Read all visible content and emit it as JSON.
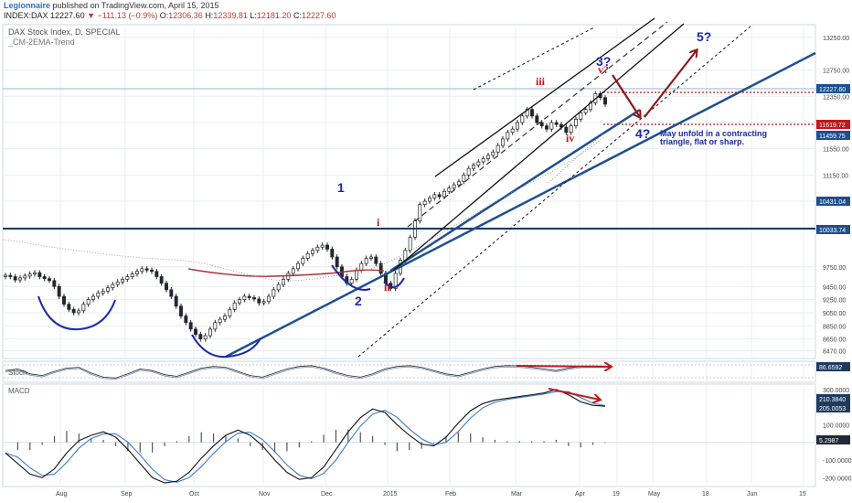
{
  "header": {
    "user": "Legionnaire",
    "published": "published on TradingView.com, April 15, 2015",
    "symbol": "INDEX:DAX",
    "last": "12227.60",
    "change": "▼ −111.13 (−0.9%)",
    "open_label": "O:",
    "open": "12306.36",
    "high_label": "H:",
    "high": "12339.81",
    "low_label": "L:",
    "low": "12181.20",
    "close_label": "C:",
    "close": "12227.60"
  },
  "pane_title": "DAX Stock Index, D, SPECIAL",
  "pane_indicator": "_CM-2EMA-Trend",
  "colors": {
    "wave_blue": "#1a2aa8",
    "wave_red": "#c0171b",
    "trend_blue": "#1e4f8f",
    "arrow": "#8b1a1a",
    "ema_red": "#b0323a",
    "ema_blue": "#1e4f8f",
    "grid": "#e8eef4"
  },
  "annotations": {
    "w1": "1",
    "w2": "2",
    "w3": "3?",
    "w4": "4?",
    "w5": "5?",
    "wi": "i",
    "wii": "ii",
    "wiii": "iii",
    "wiv": "iv",
    "wv": "v?",
    "note1": "May unfold in a contracting",
    "note2": "triangle, flat or sharp."
  },
  "stoch_label": "Stoch",
  "macd_label": "MACD",
  "chart_data": [
    {
      "type": "candlestick",
      "title": "DAX Stock Index, D, SPECIAL",
      "y_ticks": [
        "13250.00",
        "12750.00",
        "12350.00",
        "11950.00",
        "11550.00",
        "11150.00",
        "10750.00",
        "10350.00",
        "9750.00",
        "9450.00",
        "9250.00",
        "9050.00",
        "8850.00",
        "8650.00",
        "8470.00"
      ],
      "ylim": [
        8380,
        13400
      ],
      "price_tags": [
        {
          "value": "12227.60",
          "color": "#1e4f8f"
        },
        {
          "value": "11619.72",
          "color": "#c0171b"
        },
        {
          "value": "11459.75",
          "color": "#1e4f8f"
        },
        {
          "value": "10431.04",
          "color": "#1e4f8f"
        },
        {
          "value": "10033.74",
          "color": "#1e4f8f"
        }
      ],
      "x_labels": [
        "Aug",
        "Sep",
        "Oct",
        "Nov",
        "Dec",
        "2015",
        "Feb",
        "Mar",
        "Apr",
        "19",
        "May",
        "18",
        "Jun",
        "15"
      ],
      "close_series": [
        9620,
        9600,
        9550,
        9580,
        9610,
        9640,
        9660,
        9600,
        9570,
        9540,
        9450,
        9300,
        9180,
        9100,
        9050,
        9080,
        9180,
        9250,
        9300,
        9350,
        9380,
        9430,
        9480,
        9520,
        9560,
        9600,
        9640,
        9680,
        9720,
        9700,
        9680,
        9600,
        9500,
        9400,
        9300,
        9150,
        9000,
        8900,
        8800,
        8720,
        8650,
        8700,
        8800,
        8900,
        8950,
        9000,
        9100,
        9200,
        9250,
        9300,
        9280,
        9260,
        9200,
        9220,
        9300,
        9400,
        9480,
        9560,
        9650,
        9720,
        9800,
        9880,
        9950,
        10000,
        10050,
        10080,
        10020,
        9900,
        9750,
        9600,
        9500,
        9560,
        9700,
        9800,
        9880,
        9900,
        9800,
        9650,
        9500,
        9420,
        9650,
        9850,
        10000,
        10200,
        10450,
        10700,
        10750,
        10800,
        10850,
        10820,
        10900,
        10950,
        11000,
        11050,
        11150,
        11250,
        11300,
        11350,
        11400,
        11450,
        11500,
        11600,
        11700,
        11800,
        11850,
        11950,
        12050,
        12150,
        12050,
        11950,
        11900,
        11850,
        11950,
        11920,
        11880,
        11800,
        11900,
        12000,
        12100,
        12150,
        12250,
        12390,
        12330,
        12230
      ],
      "ema_fast_color": "#b0323a",
      "ema_slow_color": "#1e4f8f"
    },
    {
      "type": "line",
      "title": "Stoch",
      "value_tag": "86.6592",
      "series": [
        {
          "name": "Stoch",
          "values": [
            60,
            70,
            40,
            30,
            55,
            75,
            80,
            45,
            20,
            15,
            40,
            70,
            60,
            35,
            25,
            50,
            75,
            85,
            80,
            55,
            30,
            20,
            45,
            70,
            85,
            90,
            75,
            50,
            30,
            20,
            40,
            70,
            85,
            90,
            80,
            60,
            40,
            30,
            50,
            70,
            85,
            90,
            88,
            80,
            70,
            60,
            75,
            85,
            88,
            87
          ]
        }
      ]
    },
    {
      "type": "line",
      "title": "MACD",
      "y_ticks": [
        "300.0000",
        "200.0000",
        "100.0000",
        "-100.0000",
        "-200.0000"
      ],
      "value_tags": [
        "210.3840",
        "205.0053",
        "5.2987"
      ],
      "ylim": [
        -240,
        320
      ]
    }
  ]
}
